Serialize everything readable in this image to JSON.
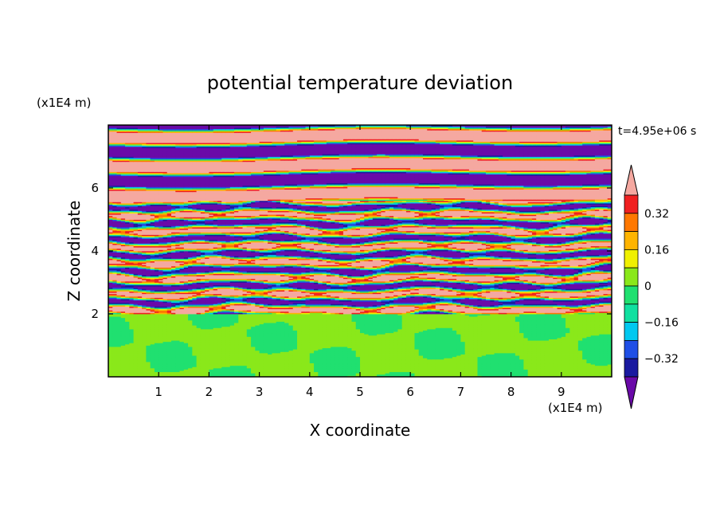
{
  "chart_data": {
    "type": "heatmap",
    "title": "potential temperature deviation",
    "xlabel": "X coordinate",
    "ylabel": "Z coordinate",
    "x_unit": "(x1E4 m)",
    "y_unit": "(x1E4 m)",
    "time_label": "t=4.95e+06 s",
    "xlim": [
      0,
      10
    ],
    "ylim": [
      0,
      8
    ],
    "x_ticks": [
      1,
      2,
      3,
      4,
      5,
      6,
      7,
      8,
      9
    ],
    "y_ticks": [
      2,
      4,
      6
    ],
    "grid": false,
    "colorbar": {
      "placement": "right",
      "tick_labels": [
        "0.32",
        "0.16",
        "0",
        "−0.16",
        "−0.32"
      ],
      "tick_values": [
        0.32,
        0.16,
        0,
        -0.16,
        -0.32
      ],
      "levels": [
        -0.48,
        -0.4,
        -0.32,
        -0.24,
        -0.16,
        -0.08,
        0,
        0.08,
        0.16,
        0.24,
        0.32,
        0.4,
        0.48
      ],
      "colors": [
        "#6a0aa8",
        "#1a1aa0",
        "#1f4fe6",
        "#00c8f0",
        "#10e0a0",
        "#20e070",
        "#8ae81a",
        "#f0f000",
        "#ffb400",
        "#ff7800",
        "#f02020",
        "#f5a8a0"
      ],
      "extend": "both"
    },
    "description_bands": [
      {
        "z_range": [
          0,
          2.0
        ],
        "level": "near zero (green / light green)"
      },
      {
        "z_range": [
          2.0,
          5.5
        ],
        "level": "alternating strong positive/negative thin layers"
      },
      {
        "z_range": [
          5.5,
          8.0
        ],
        "level": "alternating saturated bands (purple / pink)"
      }
    ]
  }
}
